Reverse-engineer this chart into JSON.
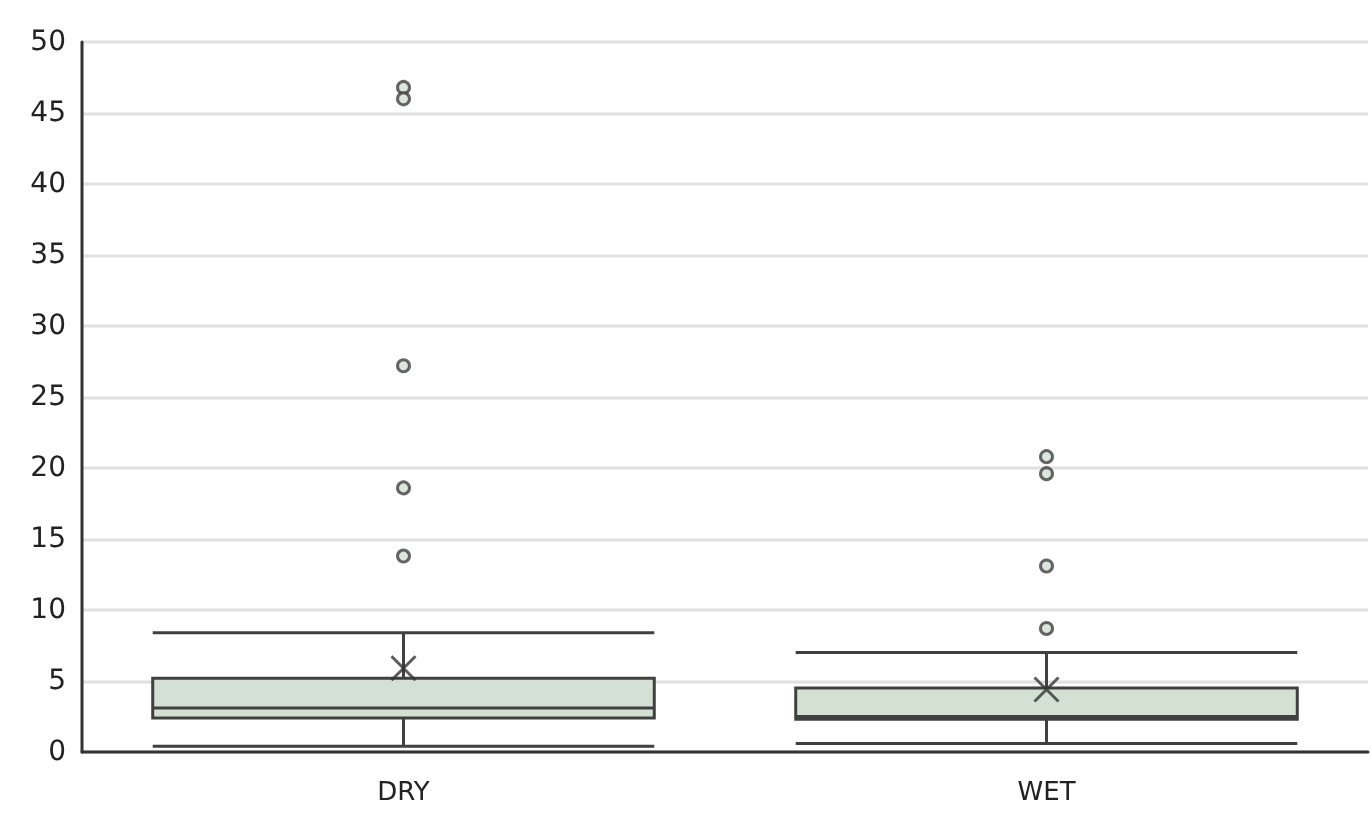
{
  "chart_data": {
    "type": "box",
    "categories": [
      "DRY",
      "WET"
    ],
    "boxes": [
      {
        "low": 0.4,
        "q1": 2.4,
        "median": 3.1,
        "q3": 5.2,
        "high": 8.4,
        "mean": 5.9,
        "outliers": [
          46.8,
          46.0,
          27.2,
          18.6,
          13.8
        ]
      },
      {
        "low": 0.6,
        "q1": 2.3,
        "median": 2.5,
        "q3": 4.5,
        "high": 7.0,
        "mean": 4.4,
        "outliers": [
          20.8,
          19.6,
          13.1,
          8.7
        ]
      }
    ],
    "color": "#d5e0d5",
    "ylim": [
      0,
      50
    ],
    "yticks": [
      0,
      5,
      10,
      15,
      20,
      25,
      30,
      35,
      40,
      45,
      50
    ],
    "grid": "y"
  }
}
